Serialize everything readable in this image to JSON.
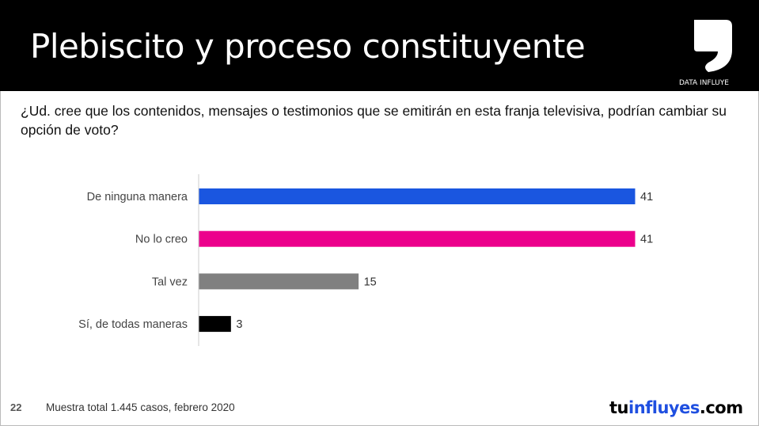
{
  "header": {
    "title": "Plebiscito y proceso constituyente",
    "logo_text": "DATA INFLUYE"
  },
  "question": "¿Ud. cree que los contenidos, mensajes o testimonios que se emitirán en esta franja televisiva, podrían cambiar su opción de voto?",
  "chart_data": {
    "type": "bar",
    "orientation": "horizontal",
    "categories": [
      "De ninguna manera",
      "No lo creo",
      "Tal vez",
      "Sí, de todas maneras"
    ],
    "values": [
      41,
      41,
      15,
      3
    ],
    "colors": [
      "#1a56e0",
      "#ec008c",
      "#808080",
      "#000000"
    ],
    "xlim": [
      0,
      41
    ],
    "grid": false
  },
  "footer": {
    "page": "22",
    "note": "Muestra total 1.445 casos, febrero 2020",
    "brand_a": "tu",
    "brand_b": "influyes",
    ".com": ".com",
    "brand_c": ".com"
  }
}
